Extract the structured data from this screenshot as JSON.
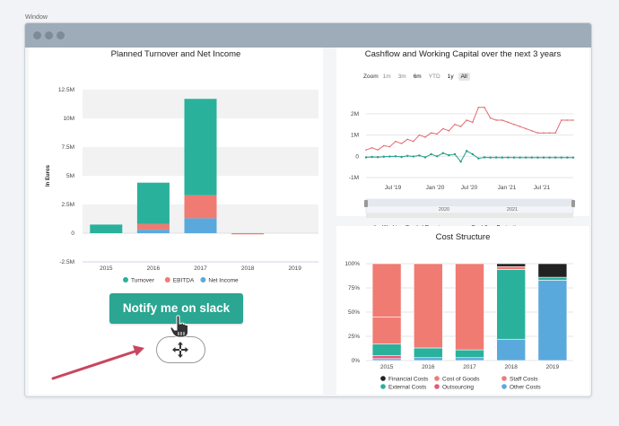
{
  "window": {
    "title": "Window"
  },
  "left_chart": {
    "chart_data": {
      "type": "bar",
      "title": "Planned Turnover and Net Income",
      "ylabel": "In Euros",
      "categories": [
        "2015",
        "2016",
        "2017",
        "2018",
        "2019"
      ],
      "y_ticks": [
        "12.5M",
        "10M",
        "7.5M",
        "5M",
        "2.5M",
        "0",
        "-2.5M"
      ],
      "ylim": [
        -2500000,
        12500000
      ],
      "series": [
        {
          "name": "Turnover",
          "color": "#2ab19b",
          "values": [
            750000,
            3600000,
            8400000,
            0,
            0
          ]
        },
        {
          "name": "EBITDA",
          "color": "#f07b73",
          "values": [
            0,
            500000,
            2000000,
            -100000,
            0
          ]
        },
        {
          "name": "Net Income",
          "color": "#5aa9dd",
          "values": [
            0,
            300000,
            1300000,
            0,
            0
          ]
        }
      ]
    }
  },
  "cashflow_chart": {
    "chart_data": {
      "type": "line",
      "title": "Cashflow and Working Capital over the next 3 years",
      "y_ticks": [
        "2M",
        "1M",
        "0",
        "-1M"
      ],
      "ylim": [
        -1000000,
        2500000
      ],
      "x_ticks": [
        "Jul '19",
        "Jan '20",
        "Jul '20",
        "Jan '21",
        "Jul '21"
      ],
      "navigator_labels": [
        "2020",
        "2021"
      ],
      "series": [
        {
          "name": "Working Capital Requireme...",
          "color": "#1f9e89",
          "values": [
            -50000,
            -30000,
            -40000,
            -20000,
            -10000,
            0,
            -30000,
            20000,
            -10000,
            40000,
            -50000,
            100000,
            0,
            150000,
            50000,
            100000,
            -250000,
            250000,
            100000,
            -100000,
            -50000,
            -60000,
            -55000,
            -60000,
            -58000,
            -60000,
            -60000,
            -60000,
            -60000,
            -60000,
            -60000,
            -60000,
            -60000,
            -60000,
            -60000,
            -60000
          ]
        },
        {
          "name": "Cashflow Projection",
          "color": "#e06a70",
          "values": [
            300000,
            400000,
            300000,
            500000,
            450000,
            700000,
            600000,
            800000,
            700000,
            1000000,
            900000,
            1100000,
            1050000,
            1300000,
            1200000,
            1500000,
            1400000,
            1700000,
            1600000,
            2300000,
            2300000,
            1800000,
            1700000,
            1700000,
            1600000,
            1500000,
            1400000,
            1300000,
            1200000,
            1100000,
            1100000,
            1100000,
            1100000,
            1700000,
            1700000,
            1700000
          ]
        }
      ]
    },
    "zoom": {
      "label": "Zoom",
      "options": [
        "1m",
        "3m",
        "6m",
        "YTD",
        "1y",
        "All"
      ],
      "selected": "All"
    }
  },
  "cost_chart": {
    "chart_data": {
      "type": "bar",
      "stacked": true,
      "percent": true,
      "title": "Cost Structure",
      "categories": [
        "2015",
        "2016",
        "2017",
        "2018",
        "2019"
      ],
      "y_ticks": [
        "100%",
        "75%",
        "50%",
        "25%",
        "0%"
      ],
      "ylim": [
        0,
        100
      ],
      "series": [
        {
          "name": "Other Costs",
          "color": "#5aa9dd",
          "values": [
            2,
            3,
            3,
            22,
            83
          ]
        },
        {
          "name": "Outsourcing",
          "color": "#e8577a",
          "values": [
            3,
            0,
            0,
            0,
            0
          ]
        },
        {
          "name": "External Costs",
          "color": "#2ab19b",
          "values": [
            12,
            10,
            8,
            72,
            3
          ]
        },
        {
          "name": "Cost of Goods",
          "color": "#f07b73",
          "values": [
            28,
            87,
            89,
            0,
            0
          ]
        },
        {
          "name": "Staff Costs",
          "color": "#f07b73",
          "values": [
            55,
            0,
            0,
            3,
            0
          ]
        },
        {
          "name": "Financial Costs",
          "color": "#222222",
          "values": [
            0,
            0,
            0,
            3,
            14
          ]
        }
      ]
    }
  },
  "slack": {
    "label": "Notify me on slack"
  },
  "icons": {
    "move": "move-icon",
    "hand": "hand-pointer-icon",
    "arrow": "arrow-icon"
  }
}
